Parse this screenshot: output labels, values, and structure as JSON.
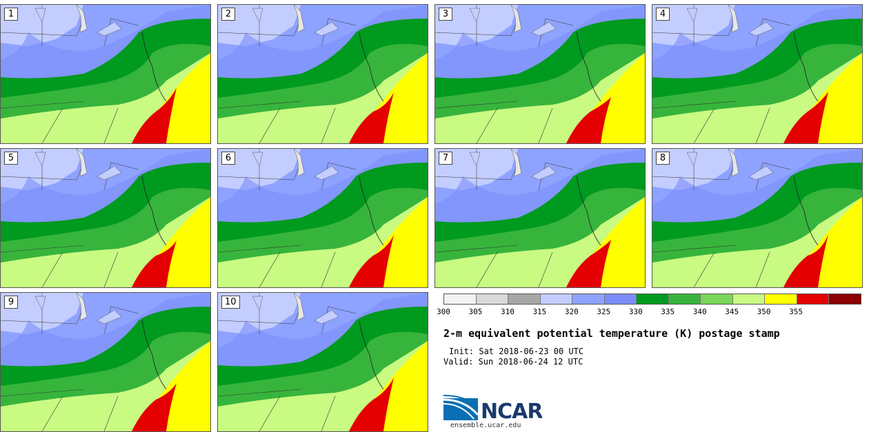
{
  "panels": [
    {
      "label": "1"
    },
    {
      "label": "2"
    },
    {
      "label": "3"
    },
    {
      "label": "4"
    },
    {
      "label": "5"
    },
    {
      "label": "6"
    },
    {
      "label": "7"
    },
    {
      "label": "8"
    },
    {
      "label": "9"
    },
    {
      "label": "10"
    }
  ],
  "legend": {
    "ticks": [
      "300",
      "305",
      "310",
      "315",
      "320",
      "325",
      "330",
      "335",
      "340",
      "345",
      "350",
      "355"
    ],
    "colors": [
      "#f2f2f2",
      "#d9d9d9",
      "#a6a6a6",
      "#c3cdff",
      "#8ea2ff",
      "#7b8dfa",
      "#009a1f",
      "#37b43c",
      "#79d557",
      "#c9fa82",
      "#ffff00",
      "#e40000",
      "#8b0000"
    ]
  },
  "title": "2-m equivalent potential temperature (K) postage stamp",
  "init": "Init: Sat 2018-06-23 00 UTC",
  "valid": "Valid: Sun 2018-06-24 12 UTC",
  "logo": {
    "text": "NCAR",
    "color": "#1a3a6e",
    "wave_color": "#0a6fb3"
  },
  "website": "ensemble.ucar.edu"
}
